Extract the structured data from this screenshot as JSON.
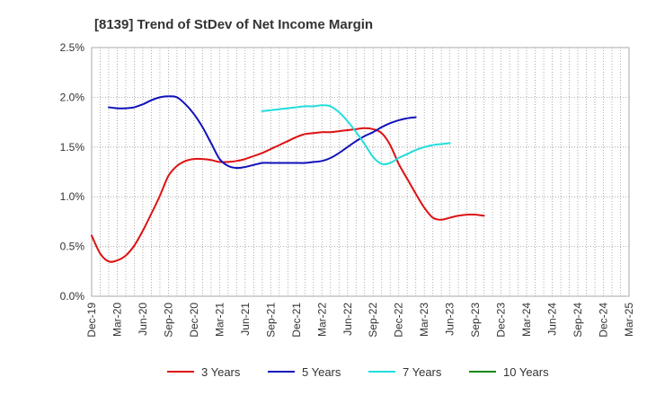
{
  "chart_data": {
    "type": "line",
    "title": "[8139]  Trend of StDev of Net Income Margin",
    "xlabel": "",
    "ylabel": "",
    "ylim": [
      0,
      0.025
    ],
    "y_ticks": [
      0,
      0.005,
      0.01,
      0.015,
      0.02,
      0.025
    ],
    "y_tick_labels": [
      "0.0%",
      "0.5%",
      "1.0%",
      "1.5%",
      "2.0%",
      "2.5%"
    ],
    "grid": true,
    "legend_position": "bottom",
    "x_tick_labels": [
      "Dec-19",
      "Mar-20",
      "Jun-20",
      "Sep-20",
      "Dec-20",
      "Mar-21",
      "Jun-21",
      "Sep-21",
      "Dec-21",
      "Mar-22",
      "Jun-22",
      "Sep-22",
      "Dec-22",
      "Mar-23",
      "Jun-23",
      "Sep-23",
      "Dec-23",
      "Mar-24",
      "Jun-24",
      "Sep-24",
      "Dec-24",
      "Mar-25"
    ],
    "series": [
      {
        "name": "3 Years",
        "color": "#dd1111",
        "start_index": 0,
        "values": [
          0.0061,
          0.0043,
          0.0035,
          0.0036,
          0.0041,
          0.0051,
          0.0066,
          0.0083,
          0.0101,
          0.0121,
          0.0131,
          0.0136,
          0.0138,
          0.0138,
          0.0137,
          0.0135,
          0.0135,
          0.0136,
          0.0138,
          0.0141,
          0.0144,
          0.0148,
          0.0152,
          0.0156,
          0.016,
          0.0163,
          0.0164,
          0.0165,
          0.0165,
          0.0166,
          0.0167,
          0.0168,
          0.0169,
          0.0168,
          0.0164,
          0.0152,
          0.0133,
          0.0118,
          0.0103,
          0.0089,
          0.0079,
          0.0077,
          0.0079,
          0.0081,
          0.0082,
          0.0082,
          0.0081
        ]
      },
      {
        "name": "5 Years",
        "color": "#1111bb",
        "start_index": 2,
        "values": [
          0.019,
          0.0189,
          0.0189,
          0.019,
          0.0193,
          0.0197,
          0.02,
          0.0201,
          0.02,
          0.0193,
          0.0183,
          0.017,
          0.0154,
          0.0138,
          0.0131,
          0.0129,
          0.013,
          0.0132,
          0.0134,
          0.0134,
          0.0134,
          0.0134,
          0.0134,
          0.0134,
          0.0135,
          0.0136,
          0.0139,
          0.0144,
          0.015,
          0.0156,
          0.0161,
          0.0165,
          0.017,
          0.0174,
          0.0177,
          0.0179,
          0.018
        ]
      },
      {
        "name": "7 Years",
        "color": "#22dddd",
        "start_index": 20,
        "values": [
          0.0186,
          0.0187,
          0.0188,
          0.0189,
          0.019,
          0.0191,
          0.0191,
          0.0192,
          0.0191,
          0.0185,
          0.0176,
          0.0165,
          0.0153,
          0.014,
          0.0133,
          0.0134,
          0.0139,
          0.0143,
          0.0147,
          0.015,
          0.0152,
          0.0153,
          0.0154
        ]
      },
      {
        "name": "10 Years",
        "color": "#118811",
        "start_index": 0,
        "values": []
      }
    ]
  }
}
